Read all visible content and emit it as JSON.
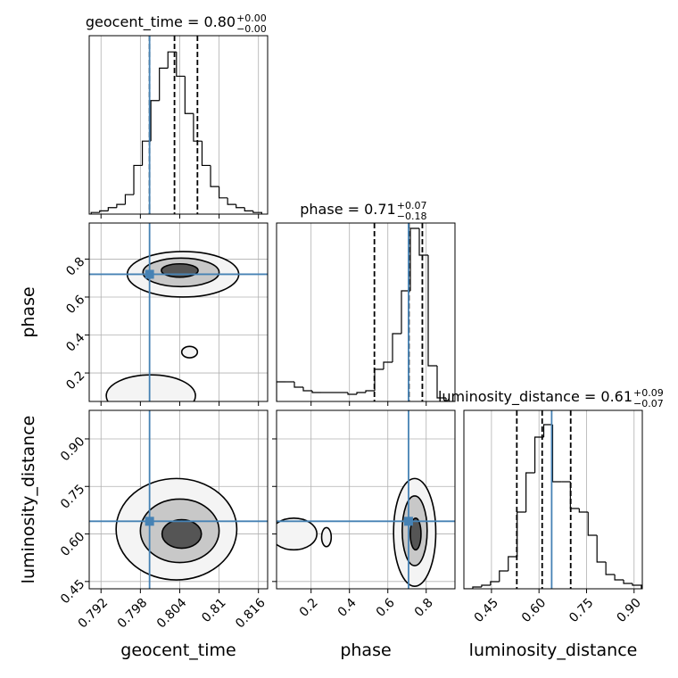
{
  "chart_data": [
    {
      "type": "histogram",
      "title": "geocent_time = 0.80",
      "title_upper": "+0.00",
      "title_lower": "−0.00",
      "xlim": [
        0.7902,
        0.8174
      ],
      "ylim": [
        0,
        1.1
      ],
      "bins": [
        0.7905,
        0.7918,
        0.7931,
        0.7944,
        0.7957,
        0.797,
        0.7983,
        0.7996,
        0.8009,
        0.8022,
        0.8035,
        0.8048,
        0.8061,
        0.8074,
        0.8087,
        0.81,
        0.8113,
        0.8126,
        0.8139,
        0.8152,
        0.8165
      ],
      "counts": [
        0.01,
        0.02,
        0.04,
        0.06,
        0.12,
        0.3,
        0.45,
        0.7,
        0.9,
        1.0,
        0.85,
        0.62,
        0.45,
        0.3,
        0.17,
        0.1,
        0.06,
        0.04,
        0.02,
        0.01
      ],
      "quantiles": [
        0.7994,
        0.8032,
        0.8067
      ],
      "truth": 0.7994,
      "grid": true,
      "color": "#000000",
      "truth_color": "#4682b4"
    },
    {
      "type": "contour",
      "ylabel": "phase",
      "xlim": [
        0.7902,
        0.8174
      ],
      "ylim": [
        0.05,
        0.99
      ],
      "yticks": [
        0.2,
        0.4,
        0.6,
        0.8
      ],
      "contours": [
        {
          "cx": 0.8045,
          "cy": 0.72,
          "rx": 0.0085,
          "ry": 0.12,
          "fill": "#f4f4f4"
        },
        {
          "cx": 0.8042,
          "cy": 0.73,
          "rx": 0.0058,
          "ry": 0.075,
          "fill": "#c8c8c8"
        },
        {
          "cx": 0.804,
          "cy": 0.74,
          "rx": 0.0028,
          "ry": 0.035,
          "fill": "#555555"
        },
        {
          "cx": 0.7996,
          "cy": 0.08,
          "rx": 0.0068,
          "ry": 0.11,
          "fill": "#f4f4f4"
        },
        {
          "cx": 0.8055,
          "cy": 0.31,
          "rx": 0.0012,
          "ry": 0.03,
          "fill": "#f4f4f4"
        }
      ],
      "truth_x": 0.7994,
      "truth_y": 0.72,
      "grid": true,
      "truth_color": "#4682b4"
    },
    {
      "type": "histogram",
      "title": "phase = 0.71",
      "title_upper": "+0.07",
      "title_lower": "−0.18",
      "xlim": [
        0.02,
        0.95
      ],
      "ylim": [
        0,
        1.0
      ],
      "bins": [
        0.02,
        0.0665,
        0.113,
        0.1595,
        0.206,
        0.2525,
        0.299,
        0.3455,
        0.392,
        0.4385,
        0.485,
        0.5315,
        0.578,
        0.6245,
        0.671,
        0.7175,
        0.764,
        0.8105,
        0.857,
        0.9035,
        0.95
      ],
      "counts": [
        0.11,
        0.11,
        0.08,
        0.06,
        0.05,
        0.05,
        0.05,
        0.05,
        0.04,
        0.05,
        0.06,
        0.18,
        0.22,
        0.38,
        0.62,
        0.97,
        0.82,
        0.2,
        0.02,
        0.0
      ],
      "quantiles": [
        0.53,
        0.71,
        0.78
      ],
      "truth": 0.708,
      "grid": true,
      "color": "#000000",
      "truth_color": "#4682b4"
    },
    {
      "type": "contour",
      "xlabel": "geocent_time",
      "ylabel": "luminosity_distance",
      "xlim": [
        0.7902,
        0.8174
      ],
      "ylim": [
        0.427,
        0.99
      ],
      "xticks": [
        0.792,
        0.798,
        0.804,
        0.81,
        0.816
      ],
      "yticks": [
        0.45,
        {
          "value": 0.6,
          "label": "0.60"
        },
        0.75,
        {
          "value": 0.9,
          "label": "0.90"
        }
      ],
      "contours": [
        {
          "cx": 0.8035,
          "cy": 0.615,
          "rx": 0.0092,
          "ry": 0.16,
          "fill": "#f4f4f4"
        },
        {
          "cx": 0.804,
          "cy": 0.61,
          "rx": 0.006,
          "ry": 0.1,
          "fill": "#c8c8c8"
        },
        {
          "cx": 0.8043,
          "cy": 0.6,
          "rx": 0.003,
          "ry": 0.045,
          "fill": "#555555"
        }
      ],
      "truth_x": 0.7994,
      "truth_y": 0.64,
      "grid": true,
      "truth_color": "#4682b4"
    },
    {
      "type": "contour",
      "xlabel": "phase",
      "xlim": [
        0.02,
        0.95
      ],
      "ylim": [
        0.427,
        0.99
      ],
      "xticks": [
        0.2,
        0.4,
        0.6,
        0.8
      ],
      "contours": [
        {
          "cx": 0.74,
          "cy": 0.605,
          "rx": 0.11,
          "ry": 0.17,
          "fill": "#f4f4f4"
        },
        {
          "cx": 0.74,
          "cy": 0.61,
          "rx": 0.065,
          "ry": 0.11,
          "fill": "#c8c8c8"
        },
        {
          "cx": 0.745,
          "cy": 0.6,
          "rx": 0.028,
          "ry": 0.05,
          "fill": "#555555"
        },
        {
          "cx": 0.11,
          "cy": 0.6,
          "rx": 0.12,
          "ry": 0.05,
          "fill": "#f4f4f4"
        },
        {
          "cx": 0.28,
          "cy": 0.59,
          "rx": 0.025,
          "ry": 0.03,
          "fill": "#f4f4f4"
        }
      ],
      "truth_x": 0.708,
      "truth_y": 0.64,
      "grid": true,
      "truth_color": "#4682b4"
    },
    {
      "type": "histogram",
      "title": "luminosity_distance = 0.61",
      "title_upper": "+0.09",
      "title_lower": "−0.07",
      "xlabel": "luminosity_distance",
      "xlim": [
        0.363,
        0.926
      ],
      "ylim": [
        0,
        1.0
      ],
      "xticks": [
        0.45,
        {
          "value": 0.6,
          "label": "0.60"
        },
        0.75,
        {
          "value": 0.9,
          "label": "0.90"
        }
      ],
      "bins": [
        0.363,
        0.391,
        0.419,
        0.447,
        0.475,
        0.503,
        0.531,
        0.559,
        0.587,
        0.615,
        0.643,
        0.671,
        0.699,
        0.727,
        0.755,
        0.783,
        0.811,
        0.839,
        0.867,
        0.895,
        0.923
      ],
      "counts": [
        0.0,
        0.01,
        0.02,
        0.04,
        0.1,
        0.18,
        0.43,
        0.65,
        0.85,
        0.92,
        0.6,
        0.6,
        0.45,
        0.43,
        0.3,
        0.15,
        0.08,
        0.05,
        0.03,
        0.02
      ],
      "quantiles": [
        0.53,
        0.61,
        0.7
      ],
      "truth": 0.64,
      "grid": true,
      "color": "#000000",
      "truth_color": "#4682b4"
    }
  ]
}
